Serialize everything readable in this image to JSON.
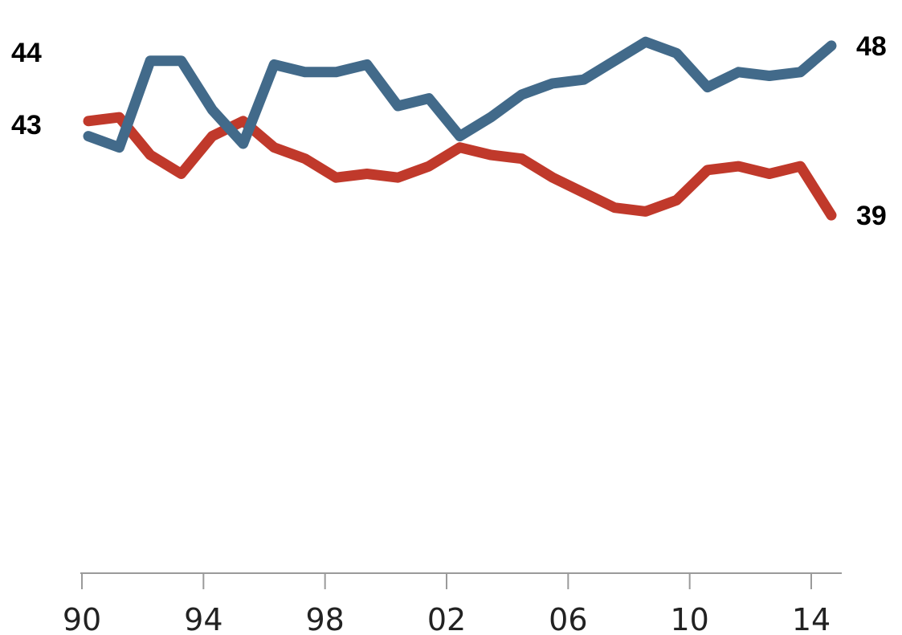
{
  "chart_data": {
    "type": "line",
    "xlabel": "",
    "ylabel": "",
    "title": "",
    "grid": false,
    "legend": "none",
    "x": [
      1990,
      1991,
      1992,
      1993,
      1994,
      1995,
      1996,
      1997,
      1998,
      1999,
      2000,
      2001,
      2002,
      2003,
      2004,
      2005,
      2006,
      2007,
      2008,
      2009,
      2010,
      2011,
      2012,
      2013,
      2014
    ],
    "xlim": [
      1990,
      2014
    ],
    "ylim": [
      20,
      50
    ],
    "x_ticks": [
      {
        "value": 1990,
        "label": "90"
      },
      {
        "value": 1994,
        "label": "94"
      },
      {
        "value": 1998,
        "label": "98"
      },
      {
        "value": 2002,
        "label": "02"
      },
      {
        "value": 2006,
        "label": "06"
      },
      {
        "value": 2010,
        "label": "10"
      },
      {
        "value": 2014,
        "label": "14"
      }
    ],
    "series": [
      {
        "color": "#426a8a",
        "values": [
          43.2,
          42.6,
          47.2,
          47.2,
          44.6,
          42.8,
          47.0,
          46.6,
          46.6,
          47.0,
          44.8,
          45.2,
          43.2,
          44.2,
          45.4,
          46.0,
          46.2,
          47.2,
          48.2,
          47.6,
          45.8,
          46.6,
          46.4,
          46.6,
          48.0
        ],
        "start_label": "43",
        "end_label": "48"
      },
      {
        "color": "#c0392b",
        "values": [
          44.0,
          44.2,
          42.2,
          41.2,
          43.2,
          44.0,
          42.6,
          42.0,
          41.0,
          41.2,
          41.0,
          41.6,
          42.6,
          42.2,
          42.0,
          41.0,
          40.2,
          39.4,
          39.2,
          39.8,
          41.4,
          41.6,
          41.2,
          41.6,
          39.0
        ],
        "start_label": "44",
        "end_label": "39"
      }
    ]
  }
}
